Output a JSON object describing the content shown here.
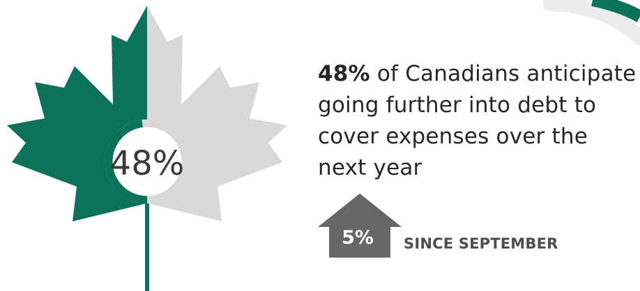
{
  "stat": {
    "percent_label": "48%",
    "percent_value": 48
  },
  "headline": {
    "highlight": "48%",
    "line1_rest": " of Canadians anticipate",
    "line2": "going further into debt to",
    "line3": "cover expenses over the",
    "line4": "next year"
  },
  "change": {
    "value_label": "5%",
    "direction": "up",
    "since_label": "SINCE SEPTEMBER"
  },
  "colors": {
    "accent_green": "#0c7259",
    "leaf_grey": "#d9d9d9",
    "arrow_grey": "#666666",
    "text_dark": "#262626"
  },
  "icons": {
    "leaf": "maple-leaf-icon",
    "arrow": "up-arrow-icon"
  }
}
